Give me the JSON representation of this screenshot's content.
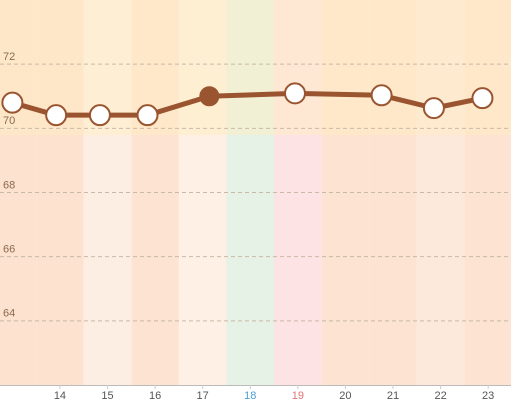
{
  "chart_data": {
    "type": "line",
    "x": [
      13.0,
      13.92,
      14.84,
      15.84,
      17.14,
      18.94,
      20.76,
      21.86,
      22.88
    ],
    "series": [
      {
        "color": "#9a5530",
        "values": [
          70.8,
          70.41,
          70.41,
          70.41,
          71.0,
          71.09,
          71.03,
          70.63,
          70.94
        ]
      }
    ],
    "filled_points": [
      4
    ],
    "xlim": [
      12.74,
      23.48
    ],
    "xticks": [
      14,
      15,
      16,
      17,
      18,
      19,
      20,
      21,
      22,
      23
    ],
    "xtick_colors": [
      "#555555",
      "#555555",
      "#555555",
      "#555555",
      "#4a9fd5",
      "#e57373",
      "#555555",
      "#555555",
      "#555555",
      "#555555"
    ],
    "column_colors": [
      "#fde2cf",
      "#fdeee4",
      "#fde3d1",
      "#fef0e4",
      "#e7f2e6",
      "#fde3e3",
      "#fde3d1",
      "#fde3d1",
      "#fde8dc",
      "#fde3d1"
    ],
    "ylim": [
      62,
      74
    ],
    "yticks": [
      64,
      66,
      68,
      70,
      72
    ],
    "grid": true
  }
}
